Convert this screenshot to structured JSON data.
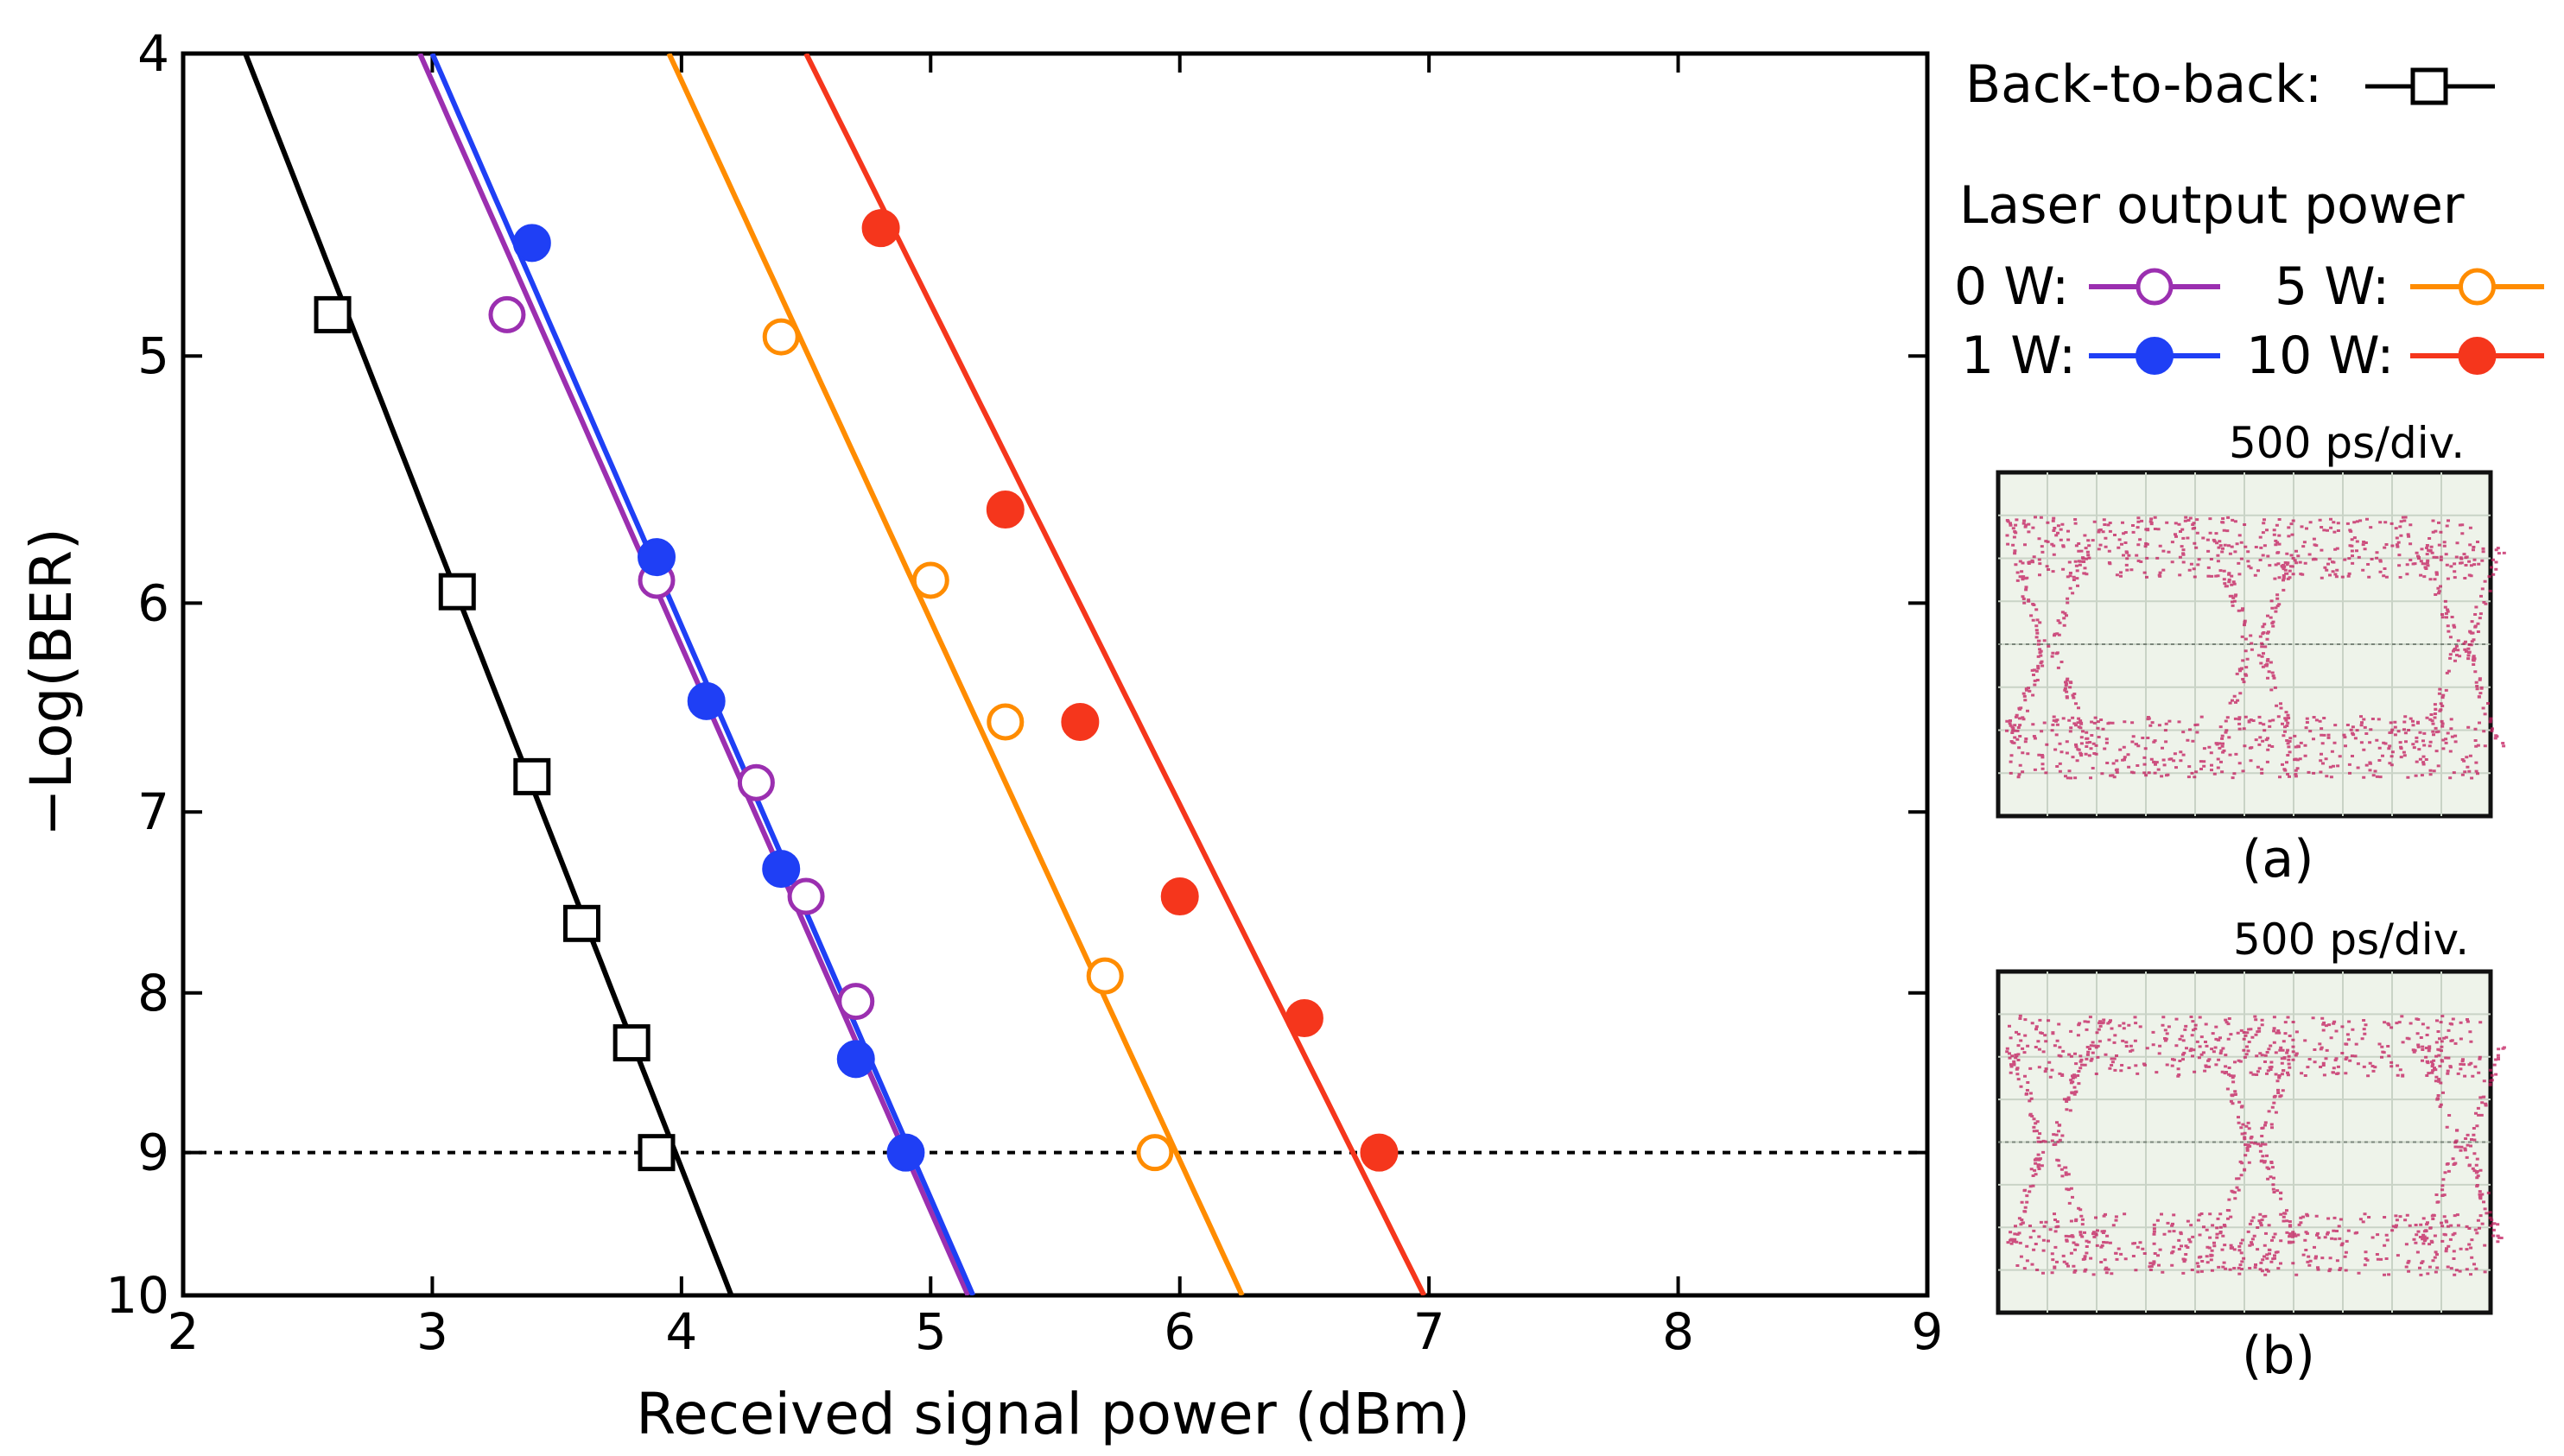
{
  "chart_data": {
    "type": "line",
    "xlabel": "Received signal power (dBm)",
    "ylabel": "−Log(BER)",
    "xlim": [
      2,
      9
    ],
    "ylim": [
      4,
      10
    ],
    "x_ticks": [
      "2",
      "3",
      "4",
      "5",
      "6",
      "7",
      "8",
      "9"
    ],
    "y_ticks": [
      "4",
      "5",
      "6",
      "7",
      "8",
      "9",
      "10"
    ],
    "threshold_y": 9,
    "series": [
      {
        "name": "Back-to-back",
        "color": "#000000",
        "marker": "open-square",
        "x": [
          2.6,
          3.1,
          3.4,
          3.6,
          3.8,
          3.9
        ],
        "y": [
          4.85,
          5.95,
          6.82,
          7.6,
          8.3,
          9.0
        ],
        "fit": [
          [
            2.25,
            4.0
          ],
          [
            4.2,
            10.0
          ]
        ]
      },
      {
        "name": "0 W",
        "color": "#9b2fb0",
        "marker": "open-circle",
        "x": [
          3.3,
          3.9,
          4.3,
          4.5,
          4.7
        ],
        "y": [
          4.85,
          5.9,
          6.85,
          7.45,
          8.05
        ],
        "fit": [
          [
            2.95,
            4.0
          ],
          [
            5.15,
            10.0
          ]
        ]
      },
      {
        "name": "1 W",
        "color": "#1f3ff5",
        "marker": "filled-circle",
        "x": [
          3.4,
          3.9,
          4.1,
          4.4,
          4.7,
          4.9
        ],
        "y": [
          4.6,
          5.8,
          6.45,
          7.3,
          8.4,
          9.0
        ],
        "fit": [
          [
            3.0,
            4.0
          ],
          [
            5.17,
            10.0
          ]
        ]
      },
      {
        "name": "5 W",
        "color": "#ff8c00",
        "marker": "open-circle",
        "x": [
          4.4,
          5.0,
          5.3,
          5.7,
          5.9
        ],
        "y": [
          4.93,
          5.9,
          6.55,
          7.9,
          9.0
        ],
        "fit": [
          [
            3.95,
            4.0
          ],
          [
            6.25,
            10.0
          ]
        ]
      },
      {
        "name": "10 W",
        "color": "#f5361c",
        "marker": "filled-circle",
        "x": [
          4.8,
          5.3,
          5.6,
          6.0,
          6.5,
          6.8
        ],
        "y": [
          4.55,
          5.6,
          6.55,
          7.45,
          8.15,
          9.0
        ],
        "fit": [
          [
            4.5,
            4.0
          ],
          [
            6.98,
            10.0
          ]
        ]
      }
    ]
  },
  "legend": {
    "b2b_label": "Back-to-back:",
    "title": "Laser output power",
    "entries": [
      {
        "label": "0 W:"
      },
      {
        "label": "1 W:"
      },
      {
        "label": "5 W:"
      },
      {
        "label": "10 W:"
      }
    ]
  },
  "eye_diagrams": [
    {
      "scale": "500 ps/div.",
      "caption": "(a)"
    },
    {
      "scale": "500 ps/div.",
      "caption": "(b)"
    }
  ],
  "colors": {
    "b2b": "#000000",
    "w0": "#9b2fb0",
    "w1": "#1f3ff5",
    "w5": "#ff8c00",
    "w10": "#f5361c",
    "eye_trace": "#c2185b",
    "eye_bg": "#eef3ea"
  }
}
